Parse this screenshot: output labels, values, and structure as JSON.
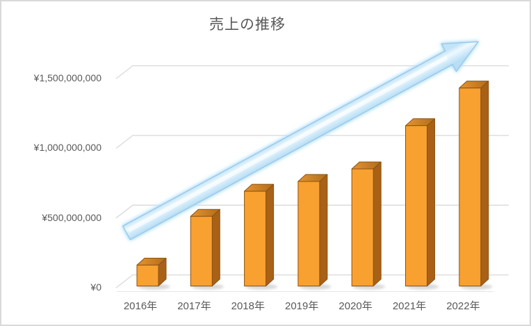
{
  "chart": {
    "background": "#FFFFFF",
    "border_color": "#D9D9D9",
    "text_color": "#595959",
    "gridline_color": "#D9D9D9"
  },
  "chart_data": {
    "type": "bar",
    "subtype": "3d-column",
    "title": "売上の推移",
    "categories": [
      "2016年",
      "2017年",
      "2018年",
      "2019年",
      "2020年",
      "2021年",
      "2022年"
    ],
    "values": [
      150000000,
      500000000,
      680000000,
      750000000,
      840000000,
      1150000000,
      1420000000
    ],
    "y_ticks": [
      {
        "value": 0,
        "label": "¥0"
      },
      {
        "value": 500000000,
        "label": "¥500,000,000"
      },
      {
        "value": 1000000000,
        "label": "¥1,000,000,000"
      },
      {
        "value": 1500000000,
        "label": "¥1,500,000,000"
      }
    ],
    "ylim": [
      0,
      1500000000
    ],
    "xlabel": "",
    "ylabel": "",
    "grid": true,
    "legend": "none",
    "bar_colors": {
      "front": "#F8A030",
      "top_light": "#E5952F",
      "top_dark": "#B26C1B",
      "side": "#A96117",
      "outline": "#8A5210"
    },
    "annotations": [
      {
        "type": "arrow",
        "meaning": "upward-trend",
        "direction": "up-right",
        "fill": "#D8EEFB",
        "outline": "#9CC7E8",
        "glow": "#A9DCFF"
      }
    ]
  }
}
